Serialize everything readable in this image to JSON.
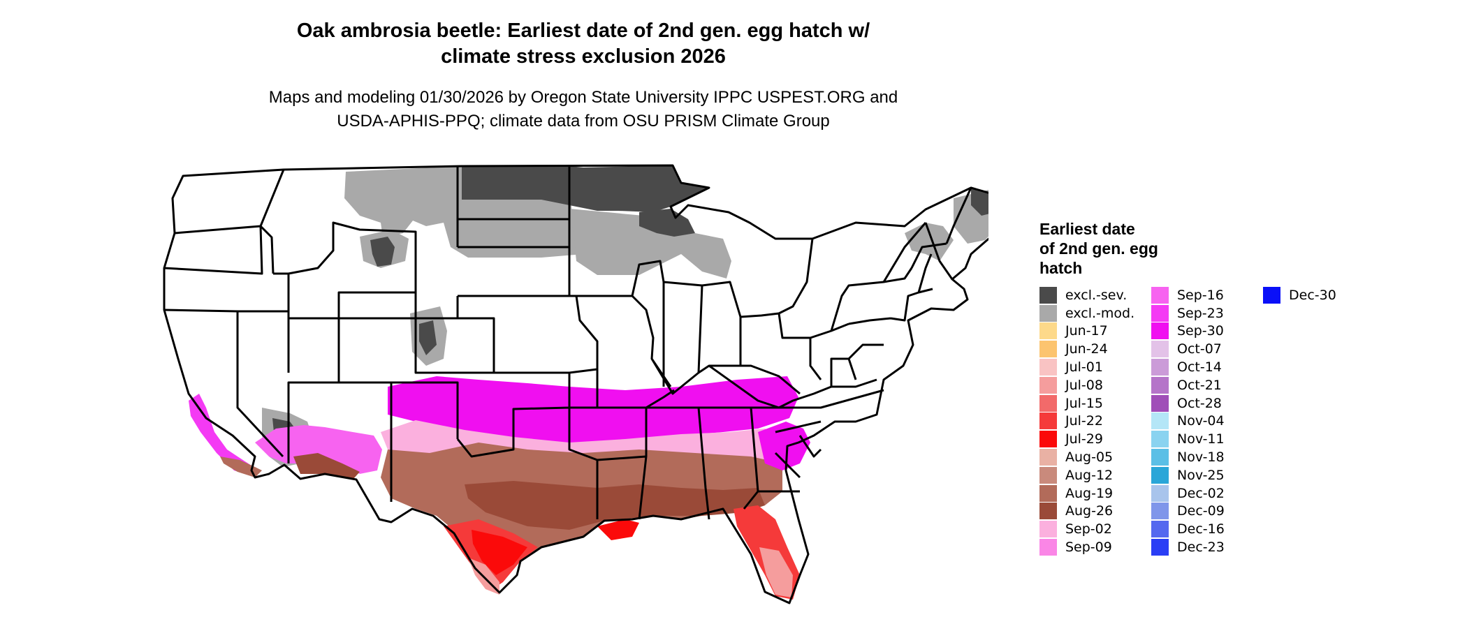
{
  "title": {
    "line1": "Oak ambrosia beetle: Earliest date of 2nd gen. egg hatch w/",
    "line2": "climate stress exclusion 2026"
  },
  "subtitle": {
    "line1": "Maps and modeling 01/30/2026 by Oregon State University IPPC USPEST.ORG and",
    "line2": "USDA-APHIS-PPQ; climate data from OSU PRISM Climate Group"
  },
  "legend": {
    "title_lines": [
      "Earliest date",
      "of 2nd gen. egg",
      "hatch"
    ],
    "columns": [
      [
        {
          "label": "excl.-sev.",
          "color": "#4a4a4a"
        },
        {
          "label": "excl.-mod.",
          "color": "#a9a9a9"
        },
        {
          "label": "Jun-17",
          "color": "#fdd98a"
        },
        {
          "label": "Jun-24",
          "color": "#fcc46f"
        },
        {
          "label": "Jul-01",
          "color": "#f9c3c3"
        },
        {
          "label": "Jul-08",
          "color": "#f59d9d"
        },
        {
          "label": "Jul-15",
          "color": "#f26a6a"
        },
        {
          "label": "Jul-22",
          "color": "#f53a3a"
        },
        {
          "label": "Jul-29",
          "color": "#fb0a0a"
        },
        {
          "label": "Aug-05",
          "color": "#e9b1a4"
        },
        {
          "label": "Aug-12",
          "color": "#c98a7c"
        },
        {
          "label": "Aug-19",
          "color": "#b26b5a"
        },
        {
          "label": "Aug-26",
          "color": "#9a4a38"
        },
        {
          "label": "Sep-02",
          "color": "#fbb0de"
        },
        {
          "label": "Sep-09",
          "color": "#fa86e6"
        }
      ],
      [
        {
          "label": "Sep-16",
          "color": "#f763f0"
        },
        {
          "label": "Sep-23",
          "color": "#f43af4"
        },
        {
          "label": "Sep-30",
          "color": "#f00ff0"
        },
        {
          "label": "Oct-07",
          "color": "#e3c2e8"
        },
        {
          "label": "Oct-14",
          "color": "#cb9bd8"
        },
        {
          "label": "Oct-21",
          "color": "#b574c9"
        },
        {
          "label": "Oct-28",
          "color": "#a04eb8"
        },
        {
          "label": "Nov-04",
          "color": "#b4e6f7"
        },
        {
          "label": "Nov-11",
          "color": "#8ad3f0"
        },
        {
          "label": "Nov-18",
          "color": "#5bbfe6"
        },
        {
          "label": "Nov-25",
          "color": "#2aa6d8"
        },
        {
          "label": "Dec-02",
          "color": "#a8c4ec"
        },
        {
          "label": "Dec-09",
          "color": "#7f96ea"
        },
        {
          "label": "Dec-16",
          "color": "#5468ef"
        },
        {
          "label": "Dec-23",
          "color": "#2a3ef5"
        }
      ],
      [
        {
          "label": "Dec-30",
          "color": "#0a10f8"
        }
      ]
    ]
  }
}
